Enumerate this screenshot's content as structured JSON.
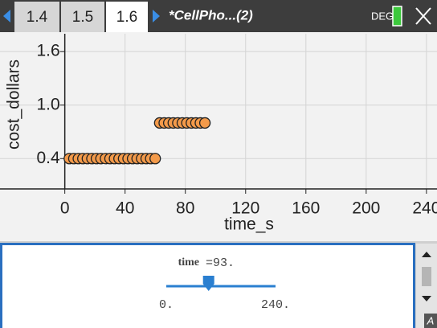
{
  "toolbar": {
    "tabs": [
      "1.4",
      "1.5",
      "1.6"
    ],
    "document_title": "*CellPho...(2)",
    "angle_mode": "DEG"
  },
  "chart_data": {
    "type": "scatter",
    "x_label": "time_s",
    "y_label": "cost_dollars",
    "x": [
      3,
      6,
      9,
      12,
      15,
      18,
      21,
      24,
      27,
      30,
      33,
      36,
      39,
      42,
      45,
      48,
      51,
      54,
      57,
      60,
      63,
      66,
      69,
      72,
      75,
      78,
      81,
      84,
      87,
      90,
      93
    ],
    "values": [
      0.4,
      0.4,
      0.4,
      0.4,
      0.4,
      0.4,
      0.4,
      0.4,
      0.4,
      0.4,
      0.4,
      0.4,
      0.4,
      0.4,
      0.4,
      0.4,
      0.4,
      0.4,
      0.4,
      0.4,
      0.8,
      0.8,
      0.8,
      0.8,
      0.8,
      0.8,
      0.8,
      0.8,
      0.8,
      0.8,
      0.8
    ],
    "color": "#f39a4a",
    "xlim": [
      -43,
      247
    ],
    "ylim": [
      0.06,
      1.8
    ],
    "xticks": [
      0,
      40,
      80,
      120,
      160,
      200,
      240
    ],
    "yticks": [
      0.4,
      {
        "value": 1,
        "label": "1.0"
      },
      1.6
    ],
    "grid": true
  },
  "slider": {
    "variable": "time",
    "readout": "=93.",
    "value": 93,
    "min": {
      "value": 0,
      "label": "0."
    },
    "max": {
      "value": 240,
      "label": "240."
    }
  },
  "corner_label": "A"
}
